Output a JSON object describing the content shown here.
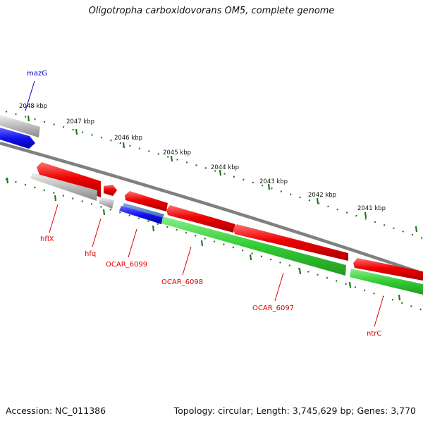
{
  "title": "Oligotropha carboxidovorans OM5, complete genome",
  "footer": {
    "accession": "Accession: NC_011386",
    "stats": "Topology: circular; Length: 3,745,629 bp; Genes: 3,770"
  },
  "scale_labels": [
    "2048 kbp",
    "2047 kbp",
    "2046 kbp",
    "2045 kbp",
    "2044 kbp",
    "2043 kbp",
    "2042 kbp",
    "2041 kbp"
  ],
  "genes": [
    {
      "name": "mazG",
      "color": "#0000cc"
    },
    {
      "name": "hflX",
      "color": "#dd0000"
    },
    {
      "name": "hfq",
      "color": "#dd0000"
    },
    {
      "name": "OCAR_6099",
      "color": "#dd0000"
    },
    {
      "name": "OCAR_6098",
      "color": "#dd0000"
    },
    {
      "name": "OCAR_6097",
      "color": "#dd0000"
    },
    {
      "name": "ntrC",
      "color": "#dd0000"
    }
  ],
  "colors": {
    "backbone": "#808080",
    "cds": "#e01010",
    "gene": "#aaaaaa",
    "rna": "#2222ee",
    "coverage": "#33bb33",
    "tick": "#227722"
  }
}
